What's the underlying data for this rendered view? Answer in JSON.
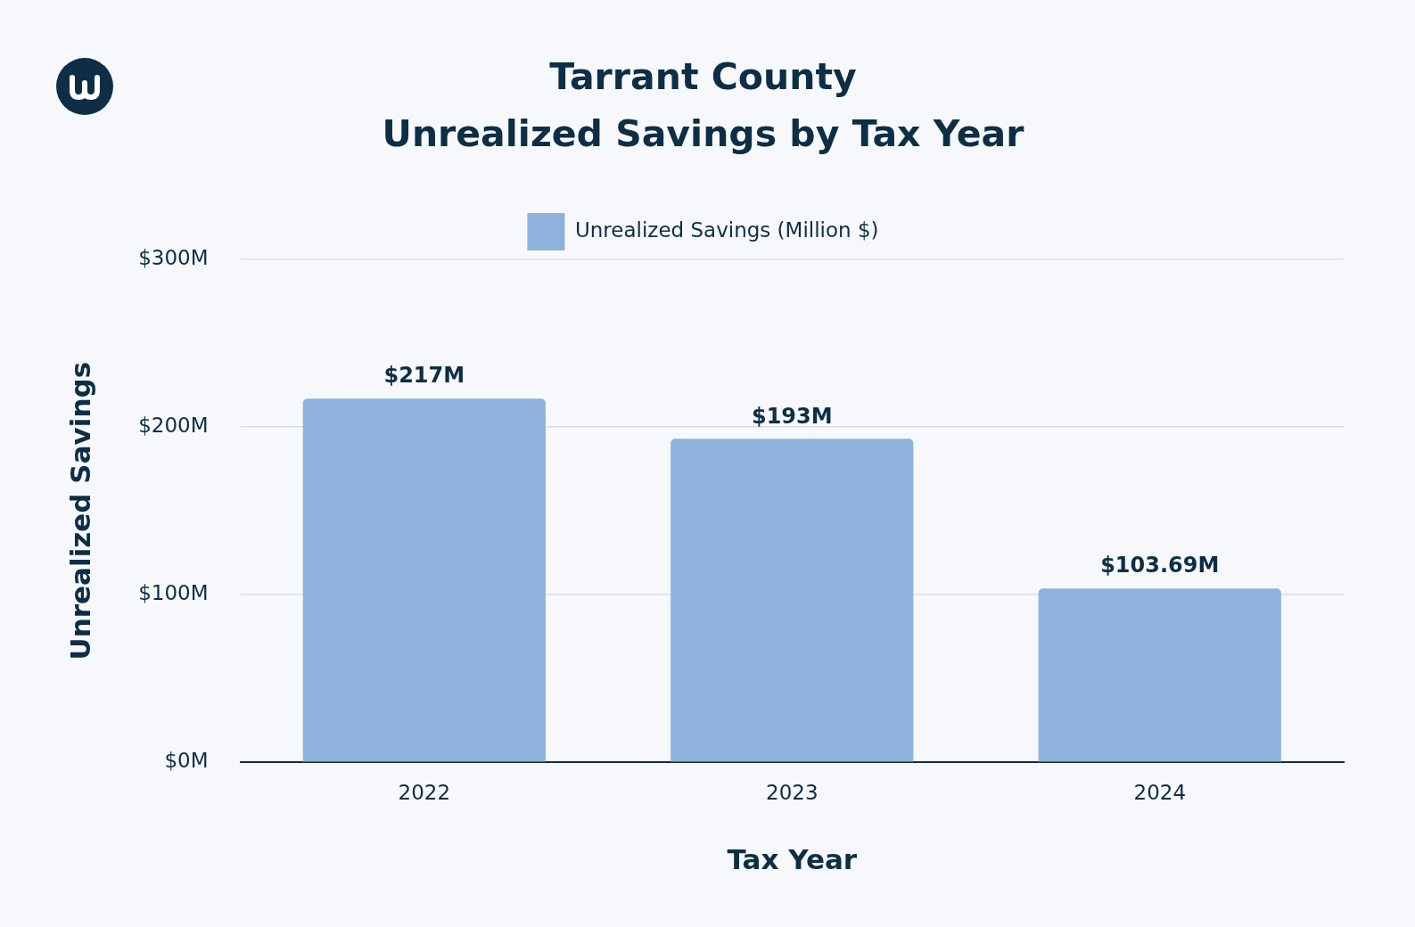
{
  "chart_data": {
    "type": "bar",
    "title": [
      "Tarrant County",
      "Unrealized Savings by Tax Year"
    ],
    "x_label": "Tax Year",
    "y_label": "Unrealized Savings",
    "categories": [
      "2022",
      "2023",
      "2024"
    ],
    "series": [
      {
        "name": "Unrealized Savings (Million $)",
        "color": "#8fb3dc",
        "values": [
          217,
          193,
          103.69
        ],
        "value_labels": [
          "$217M",
          "$193M",
          "$103.69M"
        ]
      }
    ],
    "ylim": [
      0,
      300
    ],
    "yticks": [
      {
        "value": 0,
        "label": "$0M"
      },
      {
        "value": 100,
        "label": "$100M"
      },
      {
        "value": 200,
        "label": "$200M"
      },
      {
        "value": 300,
        "label": "$300M"
      }
    ],
    "grid": true,
    "legend": "top",
    "data_labels": true
  }
}
